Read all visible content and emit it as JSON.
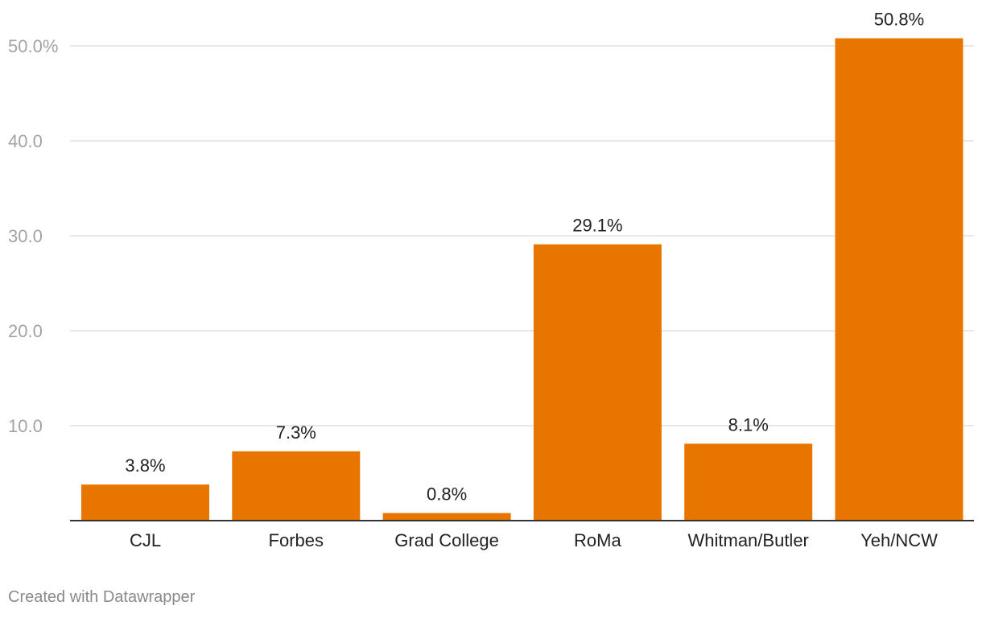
{
  "chart_data": {
    "type": "bar",
    "categories": [
      "CJL",
      "Forbes",
      "Grad College",
      "RoMa",
      "Whitman/Butler",
      "Yeh/NCW"
    ],
    "values": [
      3.8,
      7.3,
      0.8,
      29.1,
      8.1,
      50.8
    ],
    "value_labels": [
      "3.8%",
      "7.3%",
      "0.8%",
      "29.1%",
      "8.1%",
      "50.8%"
    ],
    "ylim": [
      0,
      50
    ],
    "yticks": [
      10,
      20,
      30,
      40,
      50
    ],
    "ytick_labels": [
      "10.0",
      "20.0",
      "30.0",
      "40.0",
      "50.0%"
    ],
    "title": "",
    "xlabel": "",
    "ylabel": "",
    "grid": true,
    "bar_color": "#e87500",
    "grid_color": "#e0e0e0",
    "axis_color": "#333333"
  },
  "footer": {
    "credit": "Created with Datawrapper"
  }
}
